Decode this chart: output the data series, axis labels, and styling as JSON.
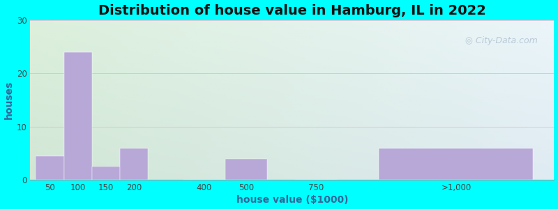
{
  "title": "Distribution of house value in Hamburg, IL in 2022",
  "xlabel": "house value ($1000)",
  "ylabel": "houses",
  "bar_labels": [
    "50",
    "100",
    "150",
    "200",
    "400",
    "500",
    "750",
    ">1,000"
  ],
  "bar_values": [
    4.5,
    24,
    2.5,
    6,
    0,
    4,
    0,
    6
  ],
  "bar_color": "#b8a8d8",
  "background_color": "#00ffff",
  "ylim": [
    0,
    30
  ],
  "yticks": [
    0,
    10,
    20,
    30
  ],
  "title_fontsize": 14,
  "axis_fontsize": 10,
  "watermark": "City-Data.com",
  "bar_positions": [
    0.5,
    1.5,
    2.5,
    3.5,
    6.0,
    7.5,
    10.0,
    15.0
  ],
  "bar_widths": [
    1.0,
    1.0,
    1.0,
    1.0,
    1.5,
    1.5,
    1.5,
    5.5
  ],
  "xtick_positions": [
    0.5,
    1.5,
    2.5,
    3.5,
    6.0,
    7.5,
    10.0,
    15.0
  ],
  "xlim": [
    -0.2,
    18.5
  ]
}
